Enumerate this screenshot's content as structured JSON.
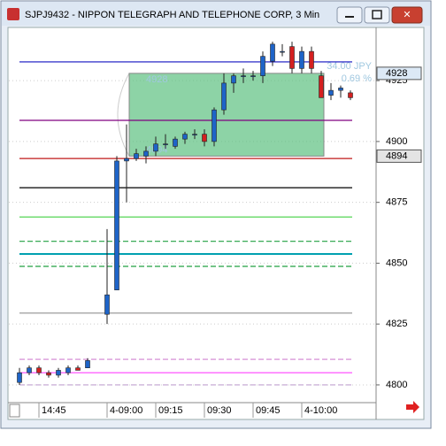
{
  "chart_data": {
    "type": "candlestick",
    "title": "SJPJ9432 - NIPPON TELEGRAPH AND TELEPHONE CORP, 3 Min",
    "categories": [
      null,
      null,
      "14:45",
      null,
      null,
      null,
      null,
      null,
      null,
      "4-09:00",
      null,
      null,
      null,
      null,
      "09:15",
      null,
      null,
      null,
      null,
      "09:30",
      null,
      null,
      null,
      null,
      "09:45",
      null,
      null,
      null,
      null,
      "4-10:00",
      null,
      null,
      null,
      null,
      null
    ],
    "open": [
      4801,
      4805,
      4807,
      4805,
      4804,
      4805,
      4807,
      4807,
      null,
      4829,
      4839,
      4892,
      4893,
      4894,
      4896,
      4899,
      4898,
      4901,
      4903,
      4903,
      4900,
      4913,
      4924,
      4927,
      4927,
      4927,
      4933,
      4937,
      4939,
      4930,
      4937,
      4927,
      4919,
      4921,
      4920
    ],
    "high": [
      4807,
      4808,
      4808,
      4806,
      4807,
      4808,
      4808,
      4811,
      null,
      4864,
      4894,
      4907,
      4897,
      4898,
      4902,
      4903,
      4902,
      4904,
      4905,
      4905,
      4914,
      4928,
      4928,
      4930,
      4929,
      4937,
      4941,
      4940,
      4941,
      4939,
      4939,
      4929,
      4924,
      4923,
      4921
    ],
    "low": [
      4800,
      4804,
      4804,
      4803,
      4803,
      4804,
      4806,
      4807,
      null,
      4825,
      4839,
      4875,
      4892,
      4891,
      4894,
      4897,
      4897,
      4899,
      4901,
      4898,
      4898,
      4911,
      4920,
      4924,
      4925,
      4924,
      4931,
      4935,
      4928,
      4928,
      4928,
      4918,
      4917,
      4918,
      4917
    ],
    "close": [
      4805,
      4807,
      4805,
      4804,
      4806,
      4807,
      4806,
      4810,
      null,
      4837,
      4892,
      4893,
      4895,
      4896,
      4899,
      4899,
      4901,
      4903,
      4903,
      4900,
      4913,
      4924,
      4927,
      4927,
      4927,
      4935,
      4940,
      4937,
      4930,
      4937,
      4930,
      4918,
      4921,
      4922,
      4918
    ],
    "up_color": "#1e64c8",
    "down_color": "#d42020",
    "ylim": [
      4793.8,
      4946.5
    ],
    "yticks": [
      4800,
      4825,
      4850,
      4875,
      4900,
      4925
    ],
    "grid": true,
    "levels": [
      {
        "value": 4932.7,
        "color": "#1010c0",
        "dash": false
      },
      {
        "value": 4908.7,
        "color": "#800080",
        "dash": false
      },
      {
        "value": 4893,
        "color": "#c01818",
        "dash": false
      },
      {
        "value": 4881,
        "color": "#000000",
        "dash": false
      },
      {
        "value": 4869,
        "color": "#40d040",
        "dash": false
      },
      {
        "value": 4859,
        "color": "#20a040",
        "dash": true
      },
      {
        "value": 4853.8,
        "color": "#00a0b0",
        "dash": false
      },
      {
        "value": 4848.7,
        "color": "#20a040",
        "dash": true
      },
      {
        "value": 4829.5,
        "color": "#909090",
        "dash": false
      },
      {
        "value": 4810.5,
        "color": "#d080d0",
        "dash": true
      },
      {
        "value": 4805,
        "color": "#ff40ff",
        "dash": false
      },
      {
        "value": 4800,
        "color": "#c0a0d0",
        "dash": true
      }
    ],
    "measure": {
      "high": 4928,
      "low": 4894,
      "change_label": "34.00 JPY",
      "percent_label": "0.69 %",
      "color": "#5cc080"
    },
    "price_markers": [
      4928,
      4894
    ]
  }
}
